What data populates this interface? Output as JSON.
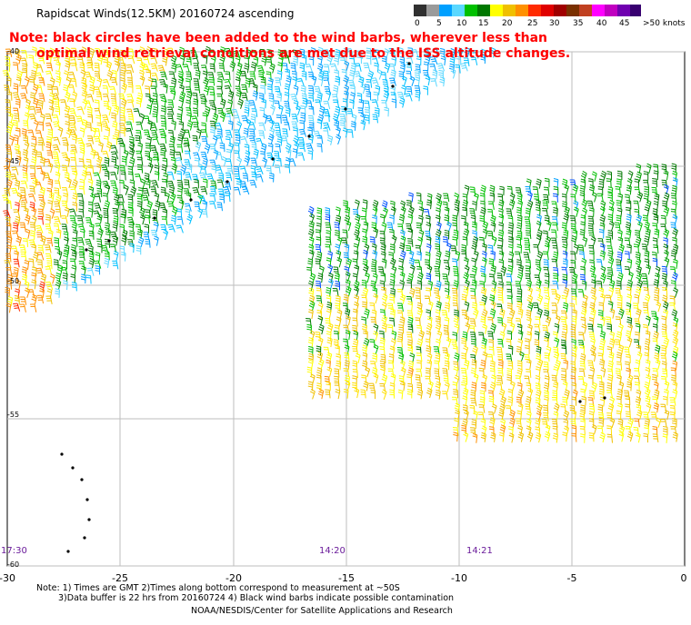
{
  "title": "Rapidscat Winds(12.5KM) 20160724 ascending",
  "note": {
    "line1": "Note: black circles have been added to the wind barbs, wherever less than",
    "line2": "optimal wind retrieval conditions are met due to the ISS altitude changes."
  },
  "color_scale": {
    "unit": ">50 knots",
    "labels": [
      "0",
      "5",
      "10",
      "15",
      "20",
      "25",
      "30",
      "35",
      "40",
      "45"
    ],
    "colors": [
      "#303030",
      "#9a9a9a",
      "#00a0ff",
      "#5ad8ff",
      "#00c000",
      "#007800",
      "#ffff00",
      "#f0c000",
      "#ff9000",
      "#ff2a00",
      "#e00000",
      "#a00000",
      "#7a3000",
      "#c04020",
      "#ff00ff",
      "#c000c0",
      "#7000b0",
      "#380070"
    ]
  },
  "axes": {
    "x_ticks": [
      "-30",
      "-25",
      "-20",
      "-15",
      "-10",
      "-5",
      "0"
    ],
    "y_ticks": [
      "-40",
      "-45",
      "-50",
      "-55",
      "-60"
    ]
  },
  "times": [
    {
      "label": "17:30"
    },
    {
      "label": "14:20"
    },
    {
      "label": "14:21"
    }
  ],
  "footer": {
    "line1": "Note: 1) Times are GMT 2)Times along bottom correspond to measurement at ~50S",
    "line2": "3)Data buffer is 22 hrs from 20160724 4) Black wind barbs indicate possible contamination",
    "line3": "NOAA/NESDIS/Center for Satellite Applications and Research"
  }
}
